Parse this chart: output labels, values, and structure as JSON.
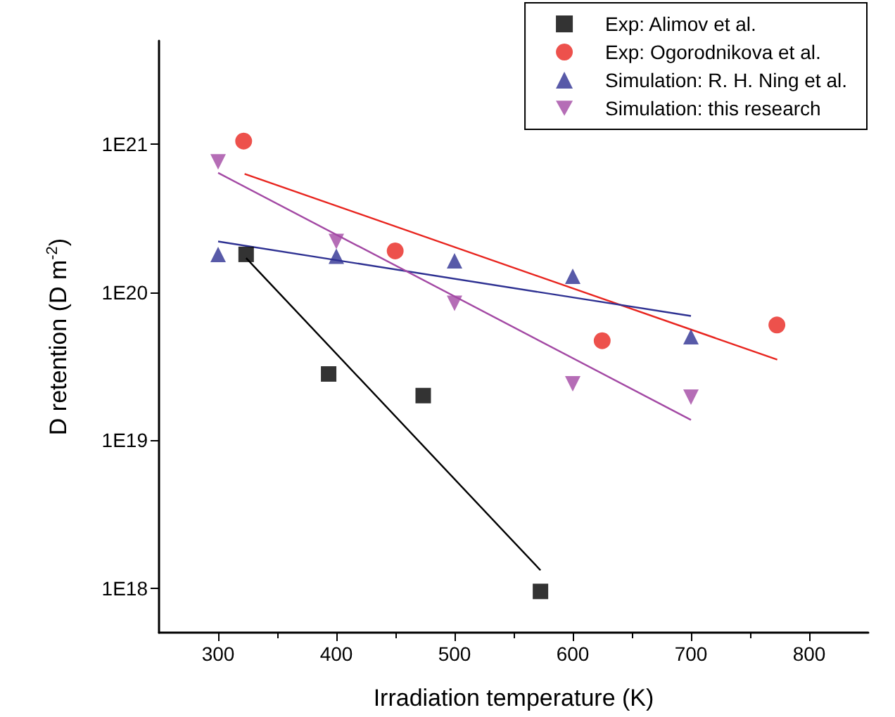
{
  "chart_data": {
    "type": "scatter",
    "xlabel": "Irradiation temperature (K)",
    "ylabel": "D retention (D m$^{-2}$)",
    "xlim": [
      250,
      850
    ],
    "xticks": [
      300,
      400,
      500,
      600,
      700,
      800
    ],
    "ylim": [
      5e+17,
      5e+21
    ],
    "yticks": [
      {
        "value": 1e+18,
        "label": "1E18"
      },
      {
        "value": 1e+19,
        "label": "1E19"
      },
      {
        "value": 1e+20,
        "label": "1E20"
      },
      {
        "value": 1e+21,
        "label": "1E21"
      }
    ],
    "log": "y",
    "grid": false,
    "legend": "top right",
    "series": [
      {
        "name": "Exp: Alimov et al.",
        "color": "#000000",
        "marker": "square",
        "x": [
          323.7,
          393.5,
          473.5,
          572.7
        ],
        "values": [
          1.8e+20,
          2.8e+19,
          2e+19,
          9.5e+17
        ]
      },
      {
        "name": "Exp: Ogorodnikova et al.",
        "color": "#e8251f",
        "marker": "circle",
        "x": [
          321.6,
          449.8,
          624.9,
          772.7
        ],
        "values": [
          1.05e+21,
          1.9e+20,
          4.7e+19,
          6e+19
        ]
      },
      {
        "name": "Simulation: R. H. Ning et al.",
        "color": "#2e3192",
        "marker": "triangle",
        "x": [
          300,
          400,
          500,
          600,
          700
        ],
        "values": [
          1.8e+20,
          1.75e+20,
          1.63e+20,
          1.28e+20,
          5e+19
        ]
      },
      {
        "name": "Simulation: this research",
        "color": "#a349a4",
        "marker": "triangle-down",
        "x": [
          300,
          400,
          500,
          600,
          700
        ],
        "values": [
          7.6e+20,
          2.2e+20,
          8.4e+19,
          2.4e+19,
          1.95e+19
        ]
      },
      {
        "type": "line",
        "color": "#000000",
        "marker": "none",
        "x": [
          323.7,
          572.7
        ],
        "values": [
          1.7e+20,
          1.32e+18
        ]
      },
      {
        "type": "line",
        "color": "#e8251f",
        "marker": "none",
        "x": [
          322.4,
          773
        ],
        "values": [
          6.3e+20,
          3.5e+19
        ]
      },
      {
        "type": "line",
        "color": "#2e3192",
        "marker": "none",
        "x": [
          300,
          700
        ],
        "values": [
          2.2e+20,
          6.9e+19
        ]
      },
      {
        "type": "line",
        "color": "#a349a4",
        "marker": "none",
        "x": [
          300,
          700
        ],
        "values": [
          6.4e+20,
          1.37e+19
        ]
      }
    ]
  }
}
